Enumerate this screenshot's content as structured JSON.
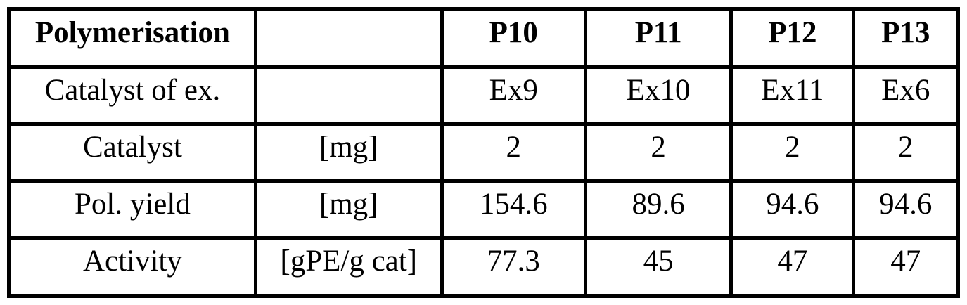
{
  "table": {
    "title": "Polymerisation",
    "column_headers": [
      "P10",
      "P11",
      "P12",
      "P13"
    ],
    "rows": [
      {
        "label": "Polymerisation",
        "unit": "",
        "values": [
          "P10",
          "P11",
          "P12",
          "P13"
        ],
        "header": true
      },
      {
        "label": "Catalyst of ex.",
        "unit": "",
        "values": [
          "Ex9",
          "Ex10",
          "Ex11",
          "Ex6"
        ],
        "header": false
      },
      {
        "label": "Catalyst",
        "unit": "[mg]",
        "values": [
          "2",
          "2",
          "2",
          "2"
        ],
        "header": false
      },
      {
        "label": "Pol. yield",
        "unit": "[mg]",
        "values": [
          "154.6",
          "89.6",
          "94.6",
          "94.6"
        ],
        "header": false
      },
      {
        "label": "Activity",
        "unit": "[gPE/g cat]",
        "values": [
          "77.3",
          "45",
          "47",
          "47"
        ],
        "header": false
      }
    ],
    "colors": {
      "border": "#000000",
      "background": "#ffffff",
      "text": "#000000"
    }
  }
}
